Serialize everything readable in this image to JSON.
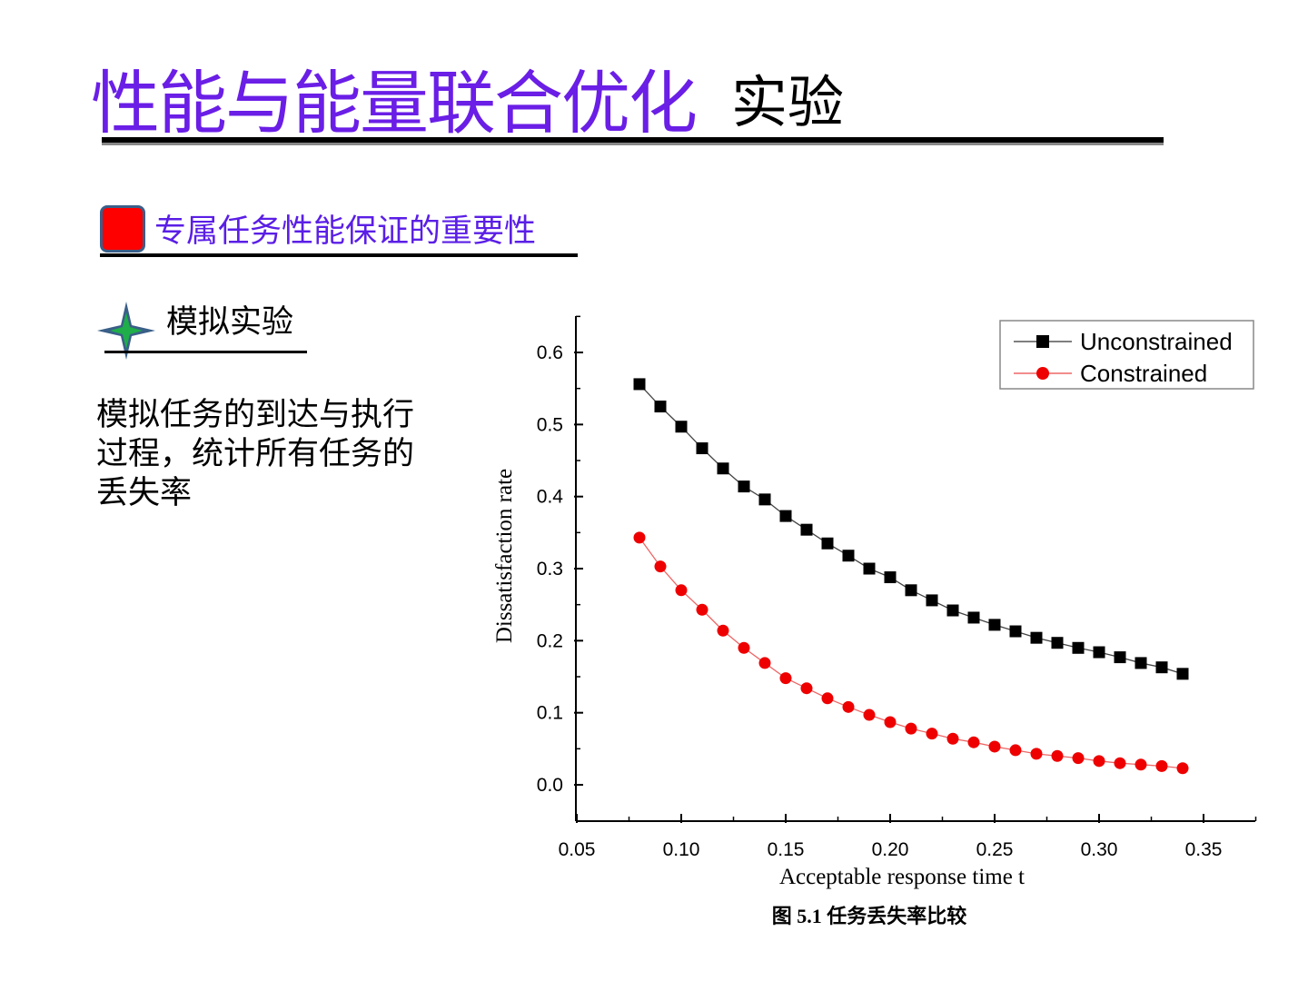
{
  "slide": {
    "title": "性能与能量联合优化",
    "title_suffix": "实验",
    "section_title": "专属任务性能保证的重要性",
    "subsection_title": "模拟实验",
    "body_text": "模拟任务的到达与执行过程，统计所有任务的丢失率",
    "colors": {
      "title": "#6a1ee6",
      "bullet": "#ff0000",
      "star": "#1fae4a"
    }
  },
  "chart_data": {
    "type": "line",
    "title": "",
    "caption": "图 5.1  任务丢失率比较",
    "xlabel": "Acceptable response time t",
    "ylabel": "Dissatisfaction rate",
    "xlim": [
      0.05,
      0.375
    ],
    "ylim": [
      -0.05,
      0.65
    ],
    "xticks": [
      "0.05",
      "0.10",
      "0.15",
      "0.20",
      "0.25",
      "0.30",
      "0.35"
    ],
    "yticks": [
      "0.0",
      "0.1",
      "0.2",
      "0.3",
      "0.4",
      "0.5",
      "0.6"
    ],
    "legend_position": "top-right",
    "x": [
      0.08,
      0.09,
      0.1,
      0.11,
      0.12,
      0.13,
      0.14,
      0.15,
      0.16,
      0.17,
      0.18,
      0.19,
      0.2,
      0.21,
      0.22,
      0.23,
      0.24,
      0.25,
      0.26,
      0.27,
      0.28,
      0.29,
      0.3,
      0.31,
      0.32,
      0.33,
      0.34
    ],
    "series": [
      {
        "name": "Unconstrained",
        "color": "#000000",
        "marker": "square",
        "values": [
          0.556,
          0.525,
          0.497,
          0.467,
          0.439,
          0.414,
          0.396,
          0.373,
          0.354,
          0.335,
          0.318,
          0.3,
          0.288,
          0.27,
          0.256,
          0.242,
          0.232,
          0.222,
          0.213,
          0.204,
          0.197,
          0.19,
          0.184,
          0.177,
          0.169,
          0.163,
          0.154
        ]
      },
      {
        "name": "Constrained",
        "color": "#ee0000",
        "marker": "circle",
        "values": [
          0.343,
          0.303,
          0.27,
          0.243,
          0.214,
          0.19,
          0.169,
          0.148,
          0.134,
          0.12,
          0.108,
          0.097,
          0.087,
          0.078,
          0.071,
          0.064,
          0.059,
          0.053,
          0.048,
          0.043,
          0.04,
          0.037,
          0.033,
          0.03,
          0.028,
          0.026,
          0.023
        ]
      }
    ]
  }
}
